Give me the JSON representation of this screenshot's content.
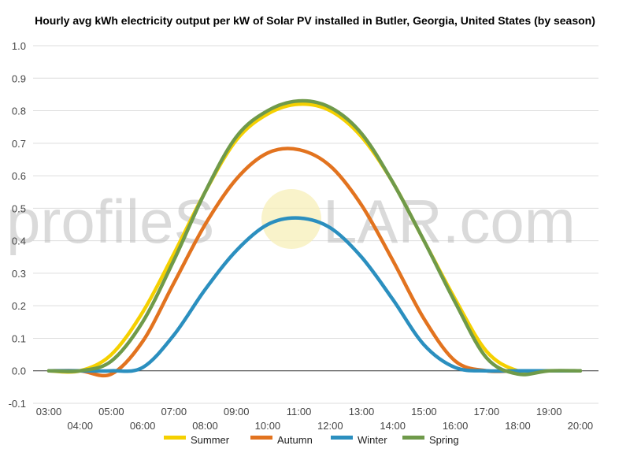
{
  "title": "Hourly avg kWh electricity output per kW of Solar PV installed in Butler, Georgia, United States (by season)",
  "watermark": {
    "left": "profileS",
    "right": "LAR.com"
  },
  "colors": {
    "Summer": "#f5d000",
    "Autumn": "#e2731f",
    "Winter": "#2b8fbf",
    "Spring": "#6f9a4a"
  },
  "chart_data": {
    "type": "line",
    "title": "Hourly avg kWh electricity output per kW of Solar PV installed in Butler, Georgia, United States (by season)",
    "xlabel": "",
    "ylabel": "",
    "ylim": [
      -0.1,
      1.0
    ],
    "yticks": [
      "-0.1",
      "0.0",
      "0.1",
      "0.2",
      "0.3",
      "0.4",
      "0.5",
      "0.6",
      "0.7",
      "0.8",
      "0.9",
      "1.0"
    ],
    "x": [
      "03:00",
      "04:00",
      "05:00",
      "06:00",
      "07:00",
      "08:00",
      "09:00",
      "10:00",
      "11:00",
      "12:00",
      "13:00",
      "14:00",
      "15:00",
      "16:00",
      "17:00",
      "18:00",
      "19:00",
      "20:00"
    ],
    "legend_position": "bottom",
    "grid": true,
    "series": [
      {
        "name": "Summer",
        "values": [
          0.0,
          0.0,
          0.05,
          0.18,
          0.36,
          0.55,
          0.71,
          0.79,
          0.82,
          0.8,
          0.72,
          0.58,
          0.4,
          0.22,
          0.06,
          0.0,
          0.0,
          0.0
        ]
      },
      {
        "name": "Autumn",
        "values": [
          0.0,
          0.0,
          -0.01,
          0.09,
          0.27,
          0.45,
          0.59,
          0.67,
          0.68,
          0.63,
          0.51,
          0.34,
          0.16,
          0.03,
          0.0,
          0.0,
          0.0,
          0.0
        ]
      },
      {
        "name": "Winter",
        "values": [
          0.0,
          0.0,
          0.0,
          0.01,
          0.11,
          0.25,
          0.37,
          0.45,
          0.47,
          0.44,
          0.35,
          0.22,
          0.08,
          0.01,
          0.0,
          0.0,
          0.0,
          0.0
        ]
      },
      {
        "name": "Spring",
        "values": [
          0.0,
          0.0,
          0.03,
          0.15,
          0.34,
          0.55,
          0.72,
          0.8,
          0.83,
          0.81,
          0.73,
          0.58,
          0.4,
          0.21,
          0.04,
          -0.01,
          0.0,
          0.0
        ]
      }
    ]
  }
}
